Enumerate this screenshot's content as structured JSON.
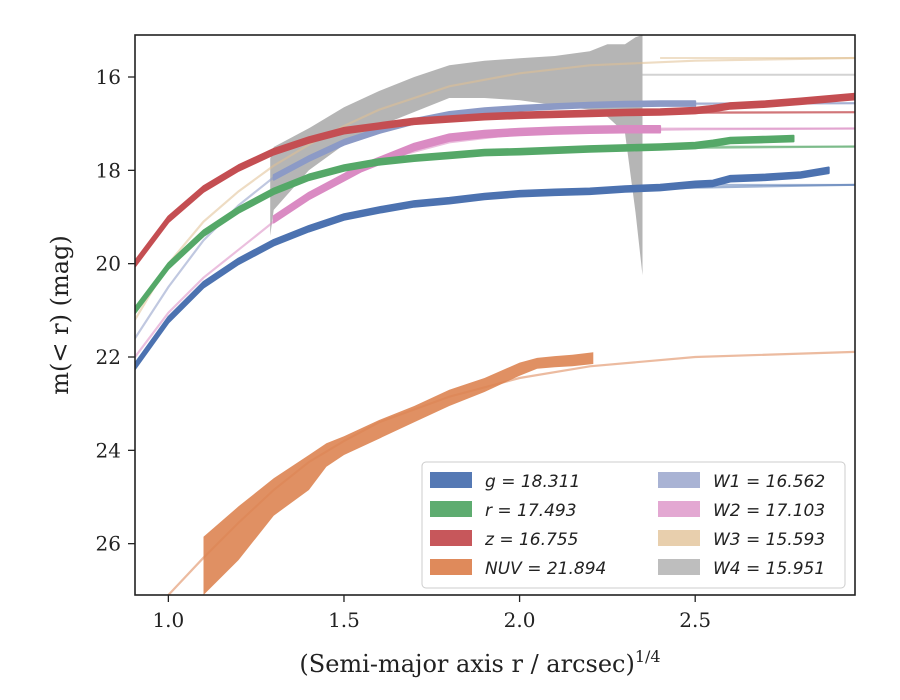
{
  "chart_data": {
    "type": "line",
    "xlabel": "(Semi-major axis r / arcsec)",
    "xlabel_exponent": "1/4",
    "ylabel": "m(< r) (mag)",
    "xlim": [
      0.905,
      2.955
    ],
    "ylim": [
      27.1,
      15.1
    ],
    "y_inverted": true,
    "xticks": [
      1.0,
      1.5,
      2.0,
      2.5
    ],
    "xtick_labels": [
      "1.0",
      "1.5",
      "2.0",
      "2.5"
    ],
    "yticks": [
      16,
      18,
      20,
      22,
      24,
      26
    ],
    "ytick_labels": [
      "16",
      "18",
      "20",
      "22",
      "24",
      "26"
    ],
    "grid": false,
    "legend_position": "lower-right",
    "legend_columns": 2,
    "series": [
      {
        "name": "g = 18.311",
        "legend_label": "g = 18.311",
        "color": "#4c72b0",
        "asymptote": 18.311,
        "model_x": [
          0.905,
          1.0,
          1.1,
          1.2,
          1.3,
          1.4,
          1.5,
          1.6,
          1.8,
          2.0,
          2.2,
          2.5,
          2.955
        ],
        "model_y": [
          22.2,
          21.2,
          20.45,
          19.95,
          19.55,
          19.25,
          19.0,
          18.85,
          18.65,
          18.52,
          18.45,
          18.37,
          18.31
        ],
        "obs_x": [
          0.905,
          1.0,
          1.1,
          1.2,
          1.3,
          1.4,
          1.5,
          1.6,
          1.7,
          1.8,
          1.9,
          2.0,
          2.1,
          2.2,
          2.3,
          2.4,
          2.5,
          2.55,
          2.6,
          2.7,
          2.8,
          2.88
        ],
        "obs_y": [
          22.2,
          21.2,
          20.45,
          19.95,
          19.55,
          19.25,
          19.0,
          18.85,
          18.72,
          18.65,
          18.56,
          18.5,
          18.47,
          18.45,
          18.4,
          18.37,
          18.3,
          18.28,
          18.18,
          18.15,
          18.1,
          18.0
        ],
        "band_width": 0.06
      },
      {
        "name": "r = 17.493",
        "legend_label": "r = 17.493",
        "color": "#55a868",
        "asymptote": 17.493,
        "model_x": [
          0.905,
          1.0,
          1.1,
          1.2,
          1.3,
          1.4,
          1.5,
          1.6,
          1.8,
          2.0,
          2.2,
          2.5,
          2.955
        ],
        "model_y": [
          21.0,
          20.05,
          19.35,
          18.85,
          18.45,
          18.15,
          17.95,
          17.82,
          17.68,
          17.6,
          17.56,
          17.52,
          17.49
        ],
        "obs_x": [
          0.905,
          1.0,
          1.1,
          1.2,
          1.3,
          1.4,
          1.5,
          1.6,
          1.7,
          1.8,
          1.9,
          2.0,
          2.1,
          2.2,
          2.3,
          2.4,
          2.5,
          2.55,
          2.6,
          2.7,
          2.78
        ],
        "obs_y": [
          21.0,
          20.05,
          19.35,
          18.85,
          18.45,
          18.15,
          17.95,
          17.82,
          17.74,
          17.68,
          17.62,
          17.6,
          17.57,
          17.54,
          17.52,
          17.5,
          17.47,
          17.42,
          17.36,
          17.34,
          17.32
        ],
        "band_width": 0.06
      },
      {
        "name": "z = 16.755",
        "legend_label": "z = 16.755",
        "color": "#c44e52",
        "asymptote": 16.755,
        "model_x": [
          0.905,
          1.0,
          1.1,
          1.2,
          1.3,
          1.4,
          1.5,
          1.6,
          1.8,
          2.0,
          2.2,
          2.5,
          2.955
        ],
        "model_y": [
          20.0,
          19.05,
          18.4,
          17.95,
          17.6,
          17.35,
          17.18,
          17.05,
          16.92,
          16.85,
          16.8,
          16.77,
          16.755
        ],
        "obs_x": [
          0.905,
          1.0,
          1.1,
          1.2,
          1.3,
          1.4,
          1.5,
          1.6,
          1.7,
          1.8,
          1.9,
          2.0,
          2.1,
          2.2,
          2.3,
          2.4,
          2.5,
          2.55,
          2.6,
          2.7,
          2.8,
          2.955
        ],
        "obs_y": [
          20.0,
          19.05,
          18.4,
          17.95,
          17.6,
          17.35,
          17.15,
          17.05,
          16.95,
          16.9,
          16.85,
          16.82,
          16.8,
          16.78,
          16.76,
          16.75,
          16.72,
          16.68,
          16.62,
          16.58,
          16.52,
          16.42
        ],
        "band_width": 0.06
      },
      {
        "name": "NUV = 21.894",
        "legend_label": "NUV = 21.894",
        "color": "#dd8452",
        "asymptote": 21.894,
        "model_x": [
          1.0,
          1.1,
          1.2,
          1.3,
          1.4,
          1.5,
          1.6,
          1.8,
          2.0,
          2.2,
          2.5,
          2.955
        ],
        "model_y": [
          27.1,
          26.3,
          25.55,
          24.85,
          24.25,
          23.8,
          23.4,
          22.85,
          22.45,
          22.2,
          22.0,
          21.89
        ],
        "obs_x": [
          1.1,
          1.2,
          1.3,
          1.4,
          1.45,
          1.5,
          1.6,
          1.7,
          1.8,
          1.9,
          2.0,
          2.05,
          2.1,
          2.15,
          2.21
        ],
        "obs_lo": [
          25.85,
          25.2,
          24.6,
          24.1,
          23.85,
          23.7,
          23.35,
          23.05,
          22.7,
          22.45,
          22.12,
          22.02,
          21.98,
          21.95,
          21.9
        ],
        "obs_hi": [
          27.1,
          26.35,
          25.4,
          24.85,
          24.35,
          24.1,
          23.75,
          23.4,
          23.05,
          22.75,
          22.4,
          22.25,
          22.22,
          22.2,
          22.15
        ]
      },
      {
        "name": "W1 = 16.562",
        "legend_label": "W1 = 16.562",
        "color": "#8c9ac6",
        "asymptote": 16.562,
        "model_x": [
          0.905,
          1.0,
          1.1,
          1.2,
          1.3,
          1.4,
          1.5,
          1.6,
          1.8,
          2.0,
          2.2,
          2.5,
          2.955
        ],
        "model_y": [
          21.6,
          20.5,
          19.5,
          18.75,
          18.15,
          17.7,
          17.35,
          17.1,
          16.8,
          16.68,
          16.62,
          16.58,
          16.562
        ],
        "obs_x": [
          1.3,
          1.4,
          1.5,
          1.6,
          1.7,
          1.8,
          1.9,
          2.0,
          2.1,
          2.2,
          2.3,
          2.4,
          2.5
        ],
        "obs_y": [
          18.15,
          17.75,
          17.4,
          17.15,
          16.95,
          16.8,
          16.72,
          16.67,
          16.63,
          16.6,
          16.58,
          16.57,
          16.57
        ],
        "band_width": 0.05
      },
      {
        "name": "W2 = 17.103",
        "legend_label": "W2 = 17.103",
        "color": "#da8bc3",
        "asymptote": 17.103,
        "model_x": [
          0.905,
          1.0,
          1.1,
          1.2,
          1.3,
          1.4,
          1.5,
          1.6,
          1.8,
          2.0,
          2.2,
          2.5,
          2.955
        ],
        "model_y": [
          22.0,
          21.05,
          20.3,
          19.7,
          19.1,
          18.6,
          18.15,
          17.8,
          17.4,
          17.22,
          17.15,
          17.12,
          17.103
        ],
        "obs_x": [
          1.3,
          1.4,
          1.5,
          1.55,
          1.6,
          1.7,
          1.8,
          1.9,
          2.0,
          2.1,
          2.2,
          2.3,
          2.4
        ],
        "obs_y": [
          19.05,
          18.55,
          18.15,
          17.95,
          17.8,
          17.5,
          17.3,
          17.22,
          17.18,
          17.15,
          17.13,
          17.12,
          17.12
        ],
        "band_width": 0.07
      },
      {
        "name": "W3 = 15.593",
        "legend_label": "W3 = 15.593",
        "color": "#e0bf92",
        "asymptote": 15.593,
        "model_x": [
          0.905,
          1.0,
          1.1,
          1.2,
          1.3,
          1.4,
          1.5,
          1.6,
          1.8,
          2.0,
          2.2,
          2.5,
          2.955
        ],
        "model_y": [
          21.2,
          20.0,
          19.1,
          18.45,
          17.9,
          17.45,
          17.05,
          16.7,
          16.2,
          15.92,
          15.75,
          15.65,
          15.593
        ]
      },
      {
        "name": "W4 = 15.951",
        "legend_label": "W4 = 15.951",
        "color": "#a8a8a8",
        "asymptote": 15.951,
        "obs_x": [
          1.29,
          1.3,
          1.4,
          1.5,
          1.6,
          1.7,
          1.8,
          1.9,
          2.0,
          2.1,
          2.2,
          2.25,
          2.3,
          2.33,
          2.35
        ],
        "obs_lo": [
          17.75,
          17.5,
          17.1,
          16.65,
          16.3,
          16.0,
          15.75,
          15.65,
          15.6,
          15.55,
          15.45,
          15.3,
          15.3,
          15.15,
          15.1
        ],
        "obs_hi": [
          19.4,
          18.85,
          18.0,
          17.45,
          17.05,
          16.75,
          16.45,
          16.45,
          16.5,
          16.6,
          16.7,
          16.85,
          17.2,
          18.9,
          20.25
        ]
      }
    ]
  }
}
